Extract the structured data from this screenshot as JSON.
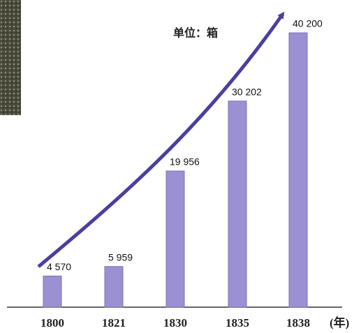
{
  "chart_data": {
    "type": "bar",
    "annotation": "单位：箱",
    "x_unit": "(年)",
    "categories": [
      "1800",
      "1821",
      "1830",
      "1835",
      "1838"
    ],
    "values": [
      4570,
      5959,
      19956,
      30202,
      40200
    ],
    "value_labels": [
      "4 570",
      "5 959",
      "19 956",
      "30 202",
      "40 200"
    ],
    "color": "#9a90d2"
  }
}
